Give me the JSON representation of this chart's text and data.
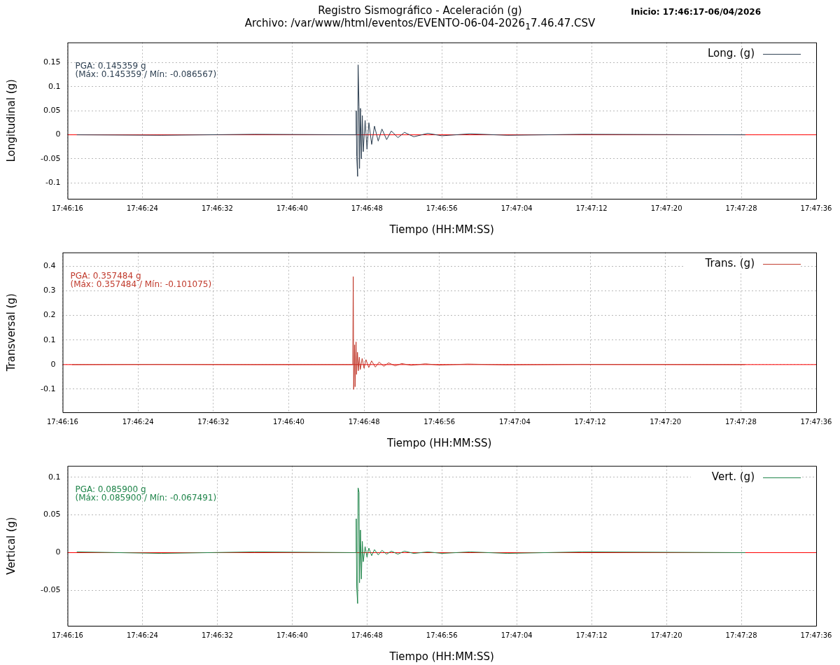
{
  "chart_data": [
    {
      "type": "line",
      "title": "Registro Sismográfico - Aceleración (g)\nArchivo: /var/www/html/eventos/EVENTO-06-04-2026$_{1}$7.46.47.CSV",
      "subtitle": "Inicio: 17:46:17-06/04/2026",
      "xlabel": "Tiempo (HH:MM:SS)",
      "ylabel": "Longitudinal (g)",
      "x": [
        17.771389,
        17.773889,
        17.776667,
        17.779667,
        17.779681,
        17.779694,
        17.779722,
        17.779736,
        17.779764,
        17.779778,
        17.779806,
        17.779833,
        17.779861,
        17.779889,
        17.779944,
        17.78,
        17.780056,
        17.780139,
        17.780222,
        17.780333,
        17.780444,
        17.780583,
        17.780722,
        17.780917,
        17.781111,
        17.781389,
        17.781806,
        17.782222,
        17.783056,
        17.784167,
        17.786389,
        17.791222
      ],
      "series": [
        {
          "name": "Long. (g)",
          "color": "#2c3e50",
          "values": [
            0,
            -0.001,
            0.001,
            0,
            0.05,
            -0.045,
            -0.086567,
            0.145359,
            0.058,
            -0.07,
            0.055,
            -0.05,
            0.04,
            -0.035,
            0.03,
            -0.03,
            0.025,
            -0.02,
            0.018,
            -0.013,
            0.012,
            -0.01,
            0.008,
            -0.006,
            0.005,
            -0.004,
            0.003,
            -0.002,
            0.002,
            -0.001,
            0.001,
            0
          ]
        }
      ],
      "annotations": [
        "PGA: 0.145359 g",
        "(Máx: 0.145359 / Mín: -0.086567)"
      ],
      "ref_lines": [
        {
          "axis": "y",
          "value": 0,
          "color": "#ff0000"
        }
      ],
      "xlim": [
        17.771111,
        17.793333
      ],
      "xticks": [
        {
          "value": 17.771111,
          "label": "17:46:16"
        },
        {
          "value": 17.773333,
          "label": "17:46:24"
        },
        {
          "value": 17.775556,
          "label": "17:46:32"
        },
        {
          "value": 17.777778,
          "label": "17:46:40"
        },
        {
          "value": 17.78,
          "label": "17:46:48"
        },
        {
          "value": 17.782222,
          "label": "17:46:56"
        },
        {
          "value": 17.784444,
          "label": "17:47:04"
        },
        {
          "value": 17.786667,
          "label": "17:47:12"
        },
        {
          "value": 17.788889,
          "label": "17:47:20"
        },
        {
          "value": 17.791111,
          "label": "17:47:28"
        },
        {
          "value": 17.793333,
          "label": "17:47:36"
        }
      ],
      "ylim": [
        -0.133,
        0.192
      ],
      "yticks": [
        -0.1,
        -0.05,
        0,
        0.05,
        0.1,
        0.15
      ],
      "grid": true,
      "legend": "top right",
      "marker": "none",
      "line_style": "solid"
    },
    {
      "type": "line",
      "xlabel": "Tiempo (HH:MM:SS)",
      "ylabel": "Transversal (g)",
      "x": [
        17.771389,
        17.773889,
        17.776667,
        17.779667,
        17.779681,
        17.779694,
        17.779722,
        17.779736,
        17.779764,
        17.779778,
        17.779806,
        17.779833,
        17.779861,
        17.779889,
        17.779944,
        17.78,
        17.780056,
        17.780139,
        17.780222,
        17.780333,
        17.780444,
        17.780583,
        17.780722,
        17.780917,
        17.781111,
        17.781389,
        17.781806,
        17.782222,
        17.783056,
        17.784167,
        17.786389,
        17.791222
      ],
      "series": [
        {
          "name": "Trans. (g)",
          "color": "#c0392b",
          "values": [
            0,
            0.001,
            0,
            0,
            0.357484,
            -0.101075,
            0.08,
            -0.09,
            0.092,
            -0.04,
            0.05,
            -0.025,
            0.03,
            -0.02,
            0.025,
            -0.015,
            0.02,
            -0.012,
            0.015,
            -0.01,
            0.01,
            -0.007,
            0.007,
            -0.005,
            0.004,
            -0.003,
            0.003,
            -0.002,
            0.002,
            -0.001,
            0.001,
            0
          ]
        }
      ],
      "annotations": [
        "PGA: 0.357484 g",
        "(Máx: 0.357484 / Mín: -0.101075)"
      ],
      "ref_lines": [
        {
          "axis": "y",
          "value": 0,
          "color": "#ff0000"
        }
      ],
      "xlim": [
        17.771111,
        17.793333
      ],
      "xticks": [
        {
          "value": 17.771111,
          "label": "17:46:16"
        },
        {
          "value": 17.773333,
          "label": "17:46:24"
        },
        {
          "value": 17.775556,
          "label": "17:46:32"
        },
        {
          "value": 17.777778,
          "label": "17:46:40"
        },
        {
          "value": 17.78,
          "label": "17:46:48"
        },
        {
          "value": 17.782222,
          "label": "17:46:56"
        },
        {
          "value": 17.784444,
          "label": "17:47:04"
        },
        {
          "value": 17.786667,
          "label": "17:47:12"
        },
        {
          "value": 17.788889,
          "label": "17:47:20"
        },
        {
          "value": 17.791111,
          "label": "17:47:28"
        },
        {
          "value": 17.793333,
          "label": "17:47:36"
        }
      ],
      "ylim": [
        -0.194,
        0.456
      ],
      "yticks": [
        -0.1,
        0,
        0.1,
        0.2,
        0.3,
        0.4
      ],
      "grid": true,
      "legend": "top right",
      "marker": "none",
      "line_style": "solid"
    },
    {
      "type": "line",
      "xlabel": "Tiempo (HH:MM:SS)",
      "ylabel": "Vertical (g)",
      "x": [
        17.771389,
        17.773889,
        17.776667,
        17.779667,
        17.779681,
        17.779694,
        17.779722,
        17.779736,
        17.779764,
        17.779778,
        17.779806,
        17.779833,
        17.779861,
        17.779889,
        17.779944,
        17.78,
        17.780056,
        17.780139,
        17.780222,
        17.780333,
        17.780444,
        17.780583,
        17.780722,
        17.780917,
        17.781111,
        17.781389,
        17.781806,
        17.782222,
        17.783056,
        17.784167,
        17.786389,
        17.791222
      ],
      "series": [
        {
          "name": "Vert. (g)",
          "color": "#1e8449",
          "values": [
            0.001,
            -0.001,
            0.001,
            0,
            0.045,
            -0.045,
            -0.067491,
            0.0859,
            0.08,
            -0.04,
            0.03,
            -0.035,
            0.015,
            -0.012,
            0.008,
            -0.006,
            0.006,
            -0.004,
            0.004,
            -0.003,
            0.003,
            -0.002,
            0.002,
            -0.002,
            0.002,
            -0.001,
            0.001,
            -0.001,
            0.001,
            -0.001,
            0.001,
            0
          ]
        }
      ],
      "annotations": [
        "PGA: 0.085900 g",
        "(Máx: 0.085900 / Mín: -0.067491)"
      ],
      "ref_lines": [
        {
          "axis": "y",
          "value": 0,
          "color": "#ff0000"
        }
      ],
      "xlim": [
        17.771111,
        17.793333
      ],
      "xticks": [
        {
          "value": 17.771111,
          "label": "17:46:16"
        },
        {
          "value": 17.773333,
          "label": "17:46:24"
        },
        {
          "value": 17.775556,
          "label": "17:46:32"
        },
        {
          "value": 17.777778,
          "label": "17:46:40"
        },
        {
          "value": 17.78,
          "label": "17:46:48"
        },
        {
          "value": 17.782222,
          "label": "17:46:56"
        },
        {
          "value": 17.784444,
          "label": "17:47:04"
        },
        {
          "value": 17.786667,
          "label": "17:47:12"
        },
        {
          "value": 17.788889,
          "label": "17:47:20"
        },
        {
          "value": 17.791111,
          "label": "17:47:28"
        },
        {
          "value": 17.793333,
          "label": "17:47:36"
        }
      ],
      "ylim": [
        -0.097,
        0.115
      ],
      "yticks": [
        -0.05,
        0,
        0.05,
        0.1
      ],
      "grid": true,
      "legend": "top right",
      "marker": "none",
      "line_style": "solid"
    }
  ]
}
